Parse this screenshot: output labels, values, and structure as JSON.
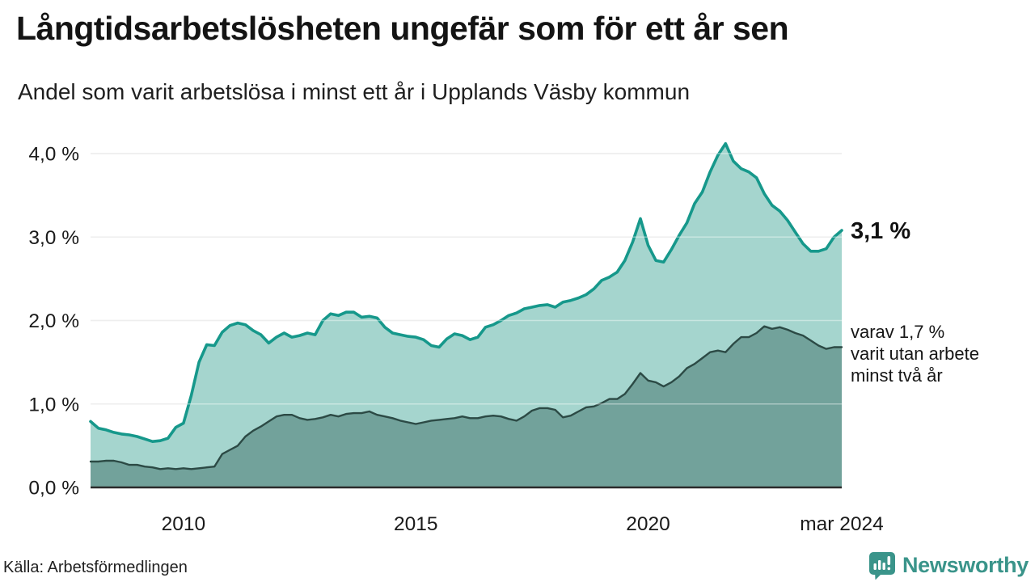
{
  "chart_data": {
    "type": "area",
    "title": "Långtidsarbetslösheten ungefär som för ett år sen",
    "subtitle": "Andel som varit arbetslösa i minst ett år i Upplands Väsby kommun",
    "unit": "%",
    "grid": "horizontal",
    "legend_position": "end-of-line-annotations",
    "ylim": [
      0,
      4.3
    ],
    "y_ticks": [
      {
        "value": 0,
        "label": "0,0 %"
      },
      {
        "value": 1,
        "label": "1,0 %"
      },
      {
        "value": 2,
        "label": "2,0 %"
      },
      {
        "value": 3,
        "label": "3,0 %"
      },
      {
        "value": 4,
        "label": "4,0 %"
      }
    ],
    "x": {
      "start_year": 2008.0,
      "end_year": 2024.1667,
      "step_months": 2,
      "ticks": [
        {
          "year": 2010,
          "label": "2010"
        },
        {
          "year": 2015,
          "label": "2015"
        },
        {
          "year": 2020,
          "label": "2020"
        },
        {
          "year": 2024.1667,
          "label": "mar 2024"
        }
      ]
    },
    "series": [
      {
        "name": "Andel som varit arbetslösa i minst ett år",
        "line_color": "#16988b",
        "fill_color": "#a5d5ce",
        "line_width": 3.6,
        "end_label": "3,1 %",
        "values": [
          0.79,
          0.71,
          0.69,
          0.66,
          0.64,
          0.63,
          0.61,
          0.58,
          0.55,
          0.56,
          0.59,
          0.72,
          0.77,
          1.1,
          1.5,
          1.71,
          1.7,
          1.86,
          1.94,
          1.97,
          1.95,
          1.88,
          1.83,
          1.73,
          1.8,
          1.85,
          1.8,
          1.82,
          1.85,
          1.83,
          2.0,
          2.08,
          2.06,
          2.1,
          2.1,
          2.04,
          2.05,
          2.03,
          1.92,
          1.85,
          1.83,
          1.81,
          1.8,
          1.77,
          1.7,
          1.68,
          1.78,
          1.84,
          1.82,
          1.77,
          1.8,
          1.92,
          1.95,
          2.0,
          2.06,
          2.09,
          2.14,
          2.16,
          2.18,
          2.19,
          2.16,
          2.22,
          2.24,
          2.27,
          2.31,
          2.38,
          2.48,
          2.52,
          2.58,
          2.72,
          2.94,
          3.22,
          2.9,
          2.72,
          2.7,
          2.85,
          3.02,
          3.17,
          3.4,
          3.54,
          3.78,
          3.98,
          4.12,
          3.91,
          3.82,
          3.78,
          3.71,
          3.52,
          3.38,
          3.31,
          3.2,
          3.06,
          2.92,
          2.83,
          2.83,
          2.86,
          3.0,
          3.08
        ]
      },
      {
        "name": "varav varit utan arbete minst två år",
        "line_color": "#2c4a45",
        "fill_color": "#72a29b",
        "line_width": 2.4,
        "end_label_lines": [
          "varav 1,7 %",
          "varit utan arbete",
          "minst två år"
        ],
        "values": [
          0.31,
          0.31,
          0.32,
          0.32,
          0.3,
          0.27,
          0.27,
          0.25,
          0.24,
          0.22,
          0.23,
          0.22,
          0.23,
          0.22,
          0.23,
          0.24,
          0.25,
          0.4,
          0.45,
          0.5,
          0.61,
          0.68,
          0.73,
          0.79,
          0.85,
          0.87,
          0.87,
          0.83,
          0.81,
          0.82,
          0.84,
          0.87,
          0.85,
          0.88,
          0.89,
          0.89,
          0.91,
          0.87,
          0.85,
          0.83,
          0.8,
          0.78,
          0.76,
          0.78,
          0.8,
          0.81,
          0.82,
          0.83,
          0.85,
          0.83,
          0.83,
          0.85,
          0.86,
          0.85,
          0.82,
          0.8,
          0.85,
          0.92,
          0.95,
          0.95,
          0.93,
          0.84,
          0.86,
          0.91,
          0.96,
          0.97,
          1.01,
          1.06,
          1.06,
          1.12,
          1.24,
          1.37,
          1.28,
          1.26,
          1.21,
          1.26,
          1.33,
          1.43,
          1.48,
          1.55,
          1.62,
          1.64,
          1.62,
          1.72,
          1.8,
          1.8,
          1.85,
          1.93,
          1.9,
          1.92,
          1.89,
          1.85,
          1.82,
          1.76,
          1.7,
          1.66,
          1.68,
          1.68
        ]
      }
    ],
    "colors": {
      "grid": "#e3e3e3",
      "grid_overlay_on_fill": "rgba(255,255,255,0.40)",
      "axis": "#2b2b2b",
      "tick_text": "#1a1a1a"
    }
  },
  "footer": {
    "source": "Källa: Arbetsförmedlingen",
    "brand": "Newsworthy",
    "brand_color": "#3a948a"
  }
}
